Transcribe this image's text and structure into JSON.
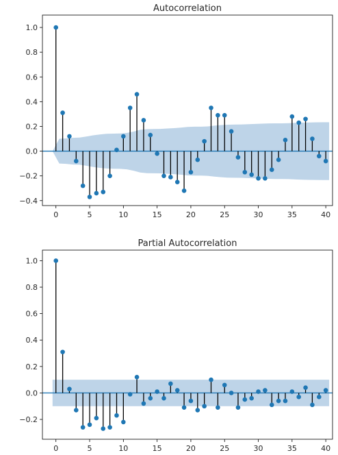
{
  "chart_data": [
    {
      "type": "stem",
      "title": "Autocorrelation",
      "x": [
        0,
        1,
        2,
        3,
        4,
        5,
        6,
        7,
        8,
        9,
        10,
        11,
        12,
        13,
        14,
        15,
        16,
        17,
        18,
        19,
        20,
        21,
        22,
        23,
        24,
        25,
        26,
        27,
        28,
        29,
        30,
        31,
        32,
        33,
        34,
        35,
        36,
        37,
        38,
        39,
        40
      ],
      "values": [
        1.0,
        0.31,
        0.12,
        -0.08,
        -0.28,
        -0.37,
        -0.34,
        -0.33,
        -0.2,
        0.01,
        0.12,
        0.35,
        0.46,
        0.25,
        0.13,
        -0.02,
        -0.2,
        -0.21,
        -0.25,
        -0.32,
        -0.17,
        -0.07,
        0.08,
        0.35,
        0.29,
        0.29,
        0.16,
        -0.05,
        -0.17,
        -0.19,
        -0.22,
        -0.22,
        -0.15,
        -0.07,
        0.09,
        0.28,
        0.23,
        0.26,
        0.1,
        -0.04,
        -0.08
      ],
      "confidence_upper": [
        0.0,
        0.1,
        0.103,
        0.108,
        0.11,
        0.118,
        0.128,
        0.135,
        0.14,
        0.142,
        0.143,
        0.147,
        0.158,
        0.173,
        0.178,
        0.179,
        0.18,
        0.183,
        0.186,
        0.19,
        0.196,
        0.198,
        0.198,
        0.2,
        0.206,
        0.211,
        0.214,
        0.215,
        0.216,
        0.218,
        0.22,
        0.222,
        0.224,
        0.225,
        0.225,
        0.226,
        0.229,
        0.231,
        0.232,
        0.233,
        0.234
      ],
      "xticks": [
        0,
        5,
        10,
        15,
        20,
        25,
        30,
        35,
        40
      ],
      "yticks": [
        1.0,
        0.8,
        0.6,
        0.4,
        0.2,
        0.0,
        -0.2,
        -0.4
      ],
      "xlim": [
        -2,
        41
      ],
      "ylim": [
        -0.44,
        1.1
      ],
      "color": "#1f77b4",
      "band_color": "#b3cde4"
    },
    {
      "type": "stem",
      "title": "Partial Autocorrelation",
      "x": [
        0,
        1,
        2,
        3,
        4,
        5,
        6,
        7,
        8,
        9,
        10,
        11,
        12,
        13,
        14,
        15,
        16,
        17,
        18,
        19,
        20,
        21,
        22,
        23,
        24,
        25,
        26,
        27,
        28,
        29,
        30,
        31,
        32,
        33,
        34,
        35,
        36,
        37,
        38,
        39,
        40
      ],
      "values": [
        1.0,
        0.31,
        0.03,
        -0.13,
        -0.26,
        -0.24,
        -0.19,
        -0.27,
        -0.26,
        -0.17,
        -0.22,
        -0.01,
        0.12,
        -0.08,
        -0.04,
        0.01,
        -0.04,
        0.07,
        0.02,
        -0.11,
        -0.06,
        -0.13,
        -0.1,
        0.1,
        -0.11,
        0.06,
        0.0,
        -0.11,
        -0.05,
        -0.04,
        0.01,
        0.02,
        -0.09,
        -0.06,
        -0.06,
        0.01,
        -0.03,
        0.04,
        -0.09,
        -0.03,
        0.02
      ],
      "confidence_upper": [
        0.1,
        0.1,
        0.1,
        0.1,
        0.1,
        0.1,
        0.1,
        0.1,
        0.1,
        0.1,
        0.1,
        0.1,
        0.1,
        0.1,
        0.1,
        0.1,
        0.1,
        0.1,
        0.1,
        0.1,
        0.1,
        0.1,
        0.1,
        0.1,
        0.1,
        0.1,
        0.1,
        0.1,
        0.1,
        0.1,
        0.1,
        0.1,
        0.1,
        0.1,
        0.1,
        0.1,
        0.1,
        0.1,
        0.1,
        0.1,
        0.1
      ],
      "xticks": [
        0,
        5,
        10,
        15,
        20,
        25,
        30,
        35,
        40
      ],
      "yticks": [
        1.0,
        0.8,
        0.6,
        0.4,
        0.2,
        0.0,
        -0.2
      ],
      "xlim": [
        -2,
        41
      ],
      "ylim": [
        -0.35,
        1.08
      ],
      "color": "#1f77b4",
      "band_color": "#b3cde4"
    }
  ]
}
